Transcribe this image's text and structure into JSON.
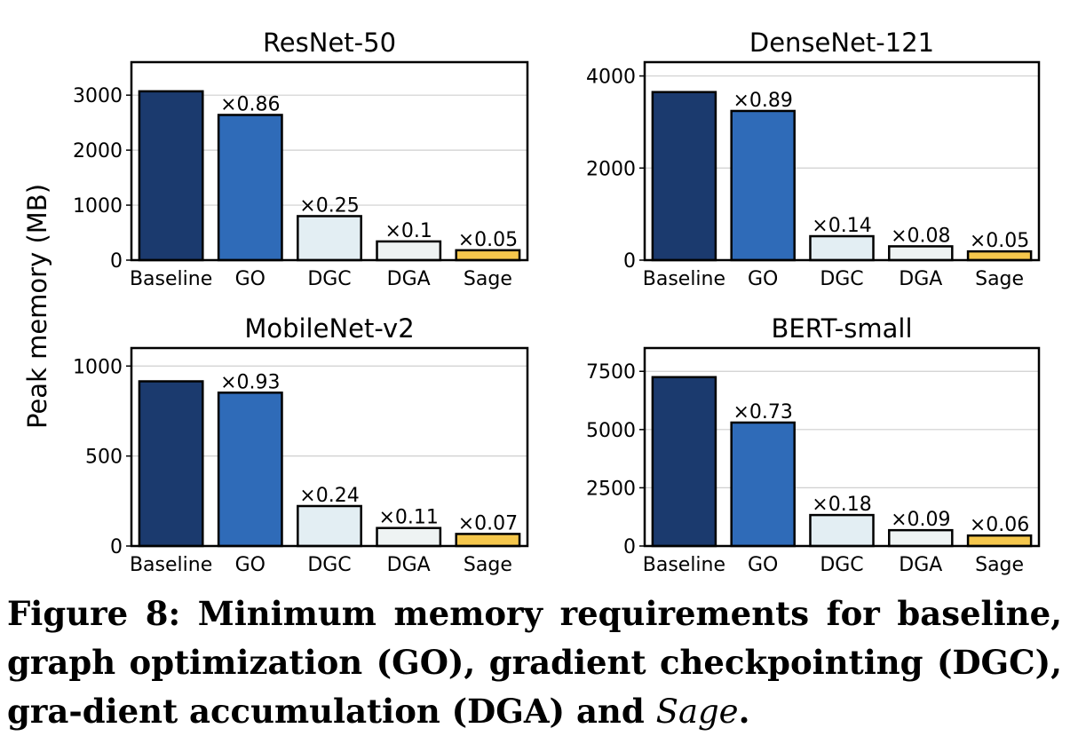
{
  "ylabel": "Peak memory (MB)",
  "caption": {
    "text": "Figure 8: Minimum memory requirements for baseline, graph optimization (GO), gradient checkpointing (DGC), gra-dient accumulation (DGA) and",
    "italic": "Sage",
    "end": "."
  },
  "colors": {
    "Baseline": "#1b3a6e",
    "GO": "#2f6bb8",
    "DGC": "#e3eef3",
    "DGA": "#eef3f3",
    "Sage": "#f5c74c"
  },
  "chart_data": [
    {
      "type": "bar",
      "title": "ResNet-50",
      "categories": [
        "Baseline",
        "GO",
        "DGC",
        "DGA",
        "Sage"
      ],
      "values": [
        3070,
        2640,
        800,
        340,
        180
      ],
      "annotations": [
        "",
        "×0.86",
        "×0.25",
        "×0.1",
        "×0.05"
      ],
      "ylim": [
        0,
        3600
      ],
      "yticks": [
        0,
        1000,
        2000,
        3000
      ],
      "grid": true
    },
    {
      "type": "bar",
      "title": "DenseNet-121",
      "categories": [
        "Baseline",
        "GO",
        "DGC",
        "DGA",
        "Sage"
      ],
      "values": [
        3650,
        3240,
        520,
        300,
        190
      ],
      "annotations": [
        "",
        "×0.89",
        "×0.14",
        "×0.08",
        "×0.05"
      ],
      "ylim": [
        0,
        4300
      ],
      "yticks": [
        0,
        2000,
        4000
      ],
      "grid": true
    },
    {
      "type": "bar",
      "title": "MobileNet-v2",
      "categories": [
        "Baseline",
        "GO",
        "DGC",
        "DGA",
        "Sage"
      ],
      "values": [
        915,
        852,
        222,
        100,
        67
      ],
      "annotations": [
        "",
        "×0.93",
        "×0.24",
        "×0.11",
        "×0.07"
      ],
      "ylim": [
        0,
        1100
      ],
      "yticks": [
        0,
        500,
        1000
      ],
      "grid": true
    },
    {
      "type": "bar",
      "title": "BERT-small",
      "categories": [
        "Baseline",
        "GO",
        "DGC",
        "DGA",
        "Sage"
      ],
      "values": [
        7250,
        5300,
        1330,
        680,
        450
      ],
      "annotations": [
        "",
        "×0.73",
        "×0.18",
        "×0.09",
        "×0.06"
      ],
      "ylim": [
        0,
        8500
      ],
      "yticks": [
        0,
        2500,
        5000,
        7500
      ],
      "grid": true
    }
  ]
}
